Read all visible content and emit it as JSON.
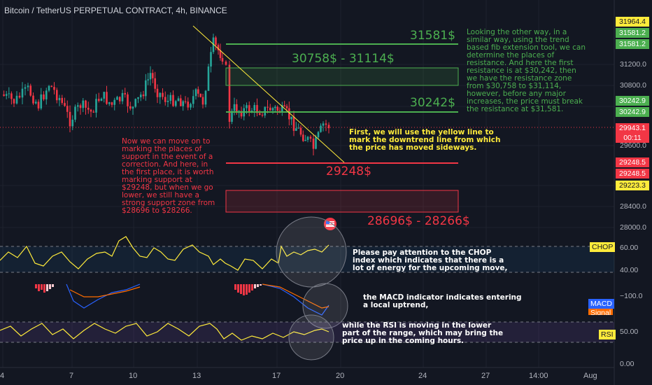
{
  "chart_title": "Bitcoin / TetherUS PERPETUAL CONTRACT, 4h, BINANCE",
  "notes": {
    "fib": "Looking the other way, in a similar way, using the trend based fib extension tool, we can determine the places of resistance. And here the first resistance is at $30,242, then we have the resistance zone from $30,758 to $31,114, however, before any major increases, the price must break the resistance at $31,581.",
    "support": "Now we can move on to marking the places of support in the event of a correction. And here, in the first place, it is worth marking support at $29248, but when we go lower, we still have a strong support zone from $28696 to $28266.",
    "trendline": "First, we will use the yellow line to mark the downtrend line from which the price has moved sideways.",
    "chop": "Please pay attention to the CHOP index which indicates that there is a lot of energy for the upcoming move,",
    "macd": "the MACD indicator indicates entering a local uptrend,",
    "rsi": "while the RSI is moving in the lower part of the range, which may bring the price up in the coming hours."
  },
  "levels": {
    "r3": "31581$",
    "r_zone": "30758$ - 31114$",
    "r1": "30242$",
    "s1": "29248$",
    "s_zone": "28696$ - 28266$"
  },
  "price_axis": {
    "ticks": [
      "31200.0",
      "30800.0",
      "29600.0",
      "28400.0",
      "28000.0"
    ],
    "tags": {
      "t31964": "31964.4",
      "t31581a": "31581.2",
      "t31581b": "31581.2",
      "t30242a": "30242.9",
      "t30242b": "30242.9",
      "last": "29943.1",
      "countdown": "00:11",
      "t29248a": "29248.5",
      "t29248b": "29248.5",
      "t29223": "29223.3"
    }
  },
  "indicators": {
    "chop": {
      "label": "CHOP",
      "ticks": [
        "60.00",
        "40.00"
      ]
    },
    "macd": {
      "label": "MACD",
      "signal": "Signal",
      "tick": "−100.0"
    },
    "rsi": {
      "label": "RSI",
      "tick": "50.00",
      "bottom": "0.00"
    }
  },
  "time_axis": [
    "4",
    "7",
    "10",
    "13",
    "17",
    "20",
    "24",
    "27",
    "14:00",
    "Aug"
  ],
  "colors": {
    "background": "#131722",
    "up": "#26a69a",
    "down": "#f23645",
    "resistance": "#4caf50",
    "support": "#f23645",
    "trendline": "#ffeb3b"
  }
}
